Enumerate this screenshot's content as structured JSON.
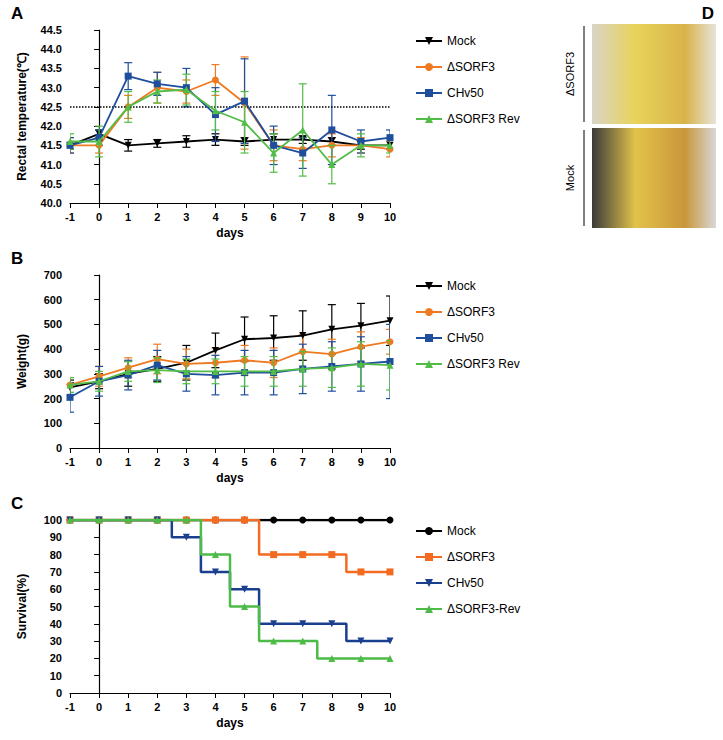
{
  "chart_data": [
    {
      "panel": "A",
      "type": "line",
      "x_label": "days",
      "y_label": "Rectal temperature(℃)",
      "x": [
        -1,
        0,
        1,
        2,
        3,
        4,
        5,
        6,
        7,
        8,
        9,
        10
      ],
      "xlim": [
        -1,
        10
      ],
      "xticks": [
        -1,
        0,
        1,
        2,
        3,
        4,
        5,
        6,
        7,
        8,
        9,
        10
      ],
      "ylim": [
        40,
        44.5
      ],
      "yticks": [
        {
          "value": 40,
          "label": "40.0"
        },
        40.5,
        {
          "value": 41,
          "label": "41.0"
        },
        41.5,
        {
          "value": 42,
          "label": "42.0"
        },
        42.5,
        {
          "value": 43,
          "label": "43.0"
        },
        43.5,
        {
          "value": 44,
          "label": "44.0"
        },
        44.5
      ],
      "reference_line": 42.5,
      "grid": false,
      "legend": "right",
      "series": [
        {
          "name": "Mock",
          "color": "#000000",
          "marker": "triangle_down",
          "values": [
            41.5,
            41.8,
            41.5,
            41.55,
            41.6,
            41.65,
            41.6,
            41.65,
            41.65,
            41.6,
            41.5,
            41.5
          ],
          "errors": [
            0.1,
            0.1,
            0.15,
            0.1,
            0.15,
            0.15,
            0.1,
            0.15,
            0.1,
            0.1,
            0.1,
            0.1
          ]
        },
        {
          "name": "ΔSORF3",
          "color": "#f07a21",
          "marker": "circle",
          "values": [
            41.5,
            41.5,
            42.5,
            43.0,
            42.9,
            43.2,
            42.6,
            41.5,
            41.4,
            41.5,
            41.5,
            41.4
          ],
          "errors": [
            0.2,
            0.2,
            0.3,
            0.4,
            0.3,
            0.4,
            1.2,
            0.4,
            0.3,
            0.3,
            0.2,
            0.2
          ]
        },
        {
          "name": "CHv50",
          "color": "#1f4e9c",
          "marker": "square",
          "values": [
            41.5,
            41.7,
            43.3,
            43.1,
            43.0,
            42.3,
            42.65,
            41.5,
            41.3,
            41.9,
            41.6,
            41.7
          ],
          "errors": [
            0.2,
            0.2,
            0.35,
            0.3,
            0.5,
            0.7,
            1.1,
            0.5,
            0.4,
            0.9,
            0.3,
            0.2
          ]
        },
        {
          "name": "ΔSORF3 Rev",
          "color": "#52bd46",
          "marker": "triangle",
          "values": [
            41.6,
            41.6,
            42.5,
            42.9,
            42.95,
            42.4,
            42.1,
            41.3,
            41.9,
            41.0,
            41.5,
            41.5
          ],
          "errors": [
            0.2,
            0.4,
            0.4,
            0.3,
            0.4,
            0.5,
            0.8,
            0.5,
            1.2,
            0.5,
            0.3,
            0.2
          ]
        }
      ]
    },
    {
      "panel": "B",
      "type": "line",
      "x_label": "days",
      "y_label": "Weight(g)",
      "x": [
        -1,
        0,
        1,
        2,
        3,
        4,
        5,
        6,
        7,
        8,
        9,
        10
      ],
      "xlim": [
        -1,
        10
      ],
      "xticks": [
        -1,
        0,
        1,
        2,
        3,
        4,
        5,
        6,
        7,
        8,
        9,
        10
      ],
      "ylim": [
        0,
        700
      ],
      "yticks": [
        0,
        100,
        200,
        300,
        400,
        500,
        600,
        700
      ],
      "grid": false,
      "legend": "right",
      "series": [
        {
          "name": "Mock",
          "color": "#000000",
          "marker": "triangle_down",
          "values": [
            245,
            270,
            300,
            320,
            345,
            395,
            440,
            445,
            455,
            480,
            495,
            515
          ],
          "errors": [
            30,
            30,
            50,
            50,
            70,
            70,
            90,
            90,
            100,
            100,
            90,
            100
          ]
        },
        {
          "name": "ΔSORF3",
          "color": "#f07a21",
          "marker": "circle",
          "values": [
            255,
            290,
            325,
            360,
            340,
            345,
            355,
            345,
            390,
            380,
            410,
            430
          ],
          "errors": [
            30,
            40,
            40,
            60,
            60,
            60,
            60,
            60,
            70,
            60,
            60,
            50
          ]
        },
        {
          "name": "CHv50",
          "color": "#1f4e9c",
          "marker": "square",
          "values": [
            205,
            270,
            295,
            335,
            300,
            295,
            305,
            305,
            320,
            330,
            340,
            350
          ],
          "errors": [
            60,
            60,
            60,
            60,
            70,
            80,
            90,
            90,
            100,
            100,
            110,
            150
          ]
        },
        {
          "name": "ΔSORF3 Rev",
          "color": "#52bd46",
          "marker": "triangle",
          "values": [
            255,
            270,
            310,
            315,
            310,
            310,
            310,
            310,
            320,
            325,
            340,
            335
          ],
          "errors": [
            30,
            40,
            40,
            50,
            50,
            50,
            60,
            60,
            70,
            80,
            90,
            100
          ]
        }
      ]
    },
    {
      "panel": "C",
      "type": "step",
      "x_label": "days",
      "y_label": "Survival(%)",
      "x": [
        -1,
        0,
        1,
        2,
        3,
        4,
        5,
        6,
        7,
        8,
        9,
        10
      ],
      "xlim": [
        -1,
        10
      ],
      "xticks": [
        -1,
        0,
        1,
        2,
        3,
        4,
        5,
        6,
        7,
        8,
        9,
        10
      ],
      "ylim": [
        0,
        100
      ],
      "yticks": [
        0,
        10,
        20,
        30,
        40,
        50,
        60,
        70,
        80,
        90,
        100
      ],
      "grid": false,
      "legend": "right",
      "series": [
        {
          "name": "Mock",
          "color": "#000000",
          "marker": "circle",
          "values": [
            100,
            100,
            100,
            100,
            100,
            100,
            100,
            100,
            100,
            100,
            100,
            100
          ]
        },
        {
          "name": "ΔSORF3",
          "color": "#f36b21",
          "marker": "square",
          "values": [
            100,
            100,
            100,
            100,
            100,
            100,
            100,
            80,
            80,
            80,
            70,
            70
          ]
        },
        {
          "name": "CHv50",
          "color": "#1a3f8f",
          "marker": "triangle_down",
          "values": [
            100,
            100,
            100,
            100,
            90,
            70,
            60,
            40,
            40,
            40,
            30,
            30
          ]
        },
        {
          "name": "ΔSORF3-Rev",
          "color": "#4cbb47",
          "marker": "triangle",
          "values": [
            100,
            100,
            100,
            100,
            100,
            80,
            50,
            30,
            30,
            20,
            20,
            20
          ]
        }
      ]
    }
  ],
  "photo": {
    "panel": "D",
    "labels": [
      "ΔSORF3",
      "Mock"
    ]
  }
}
